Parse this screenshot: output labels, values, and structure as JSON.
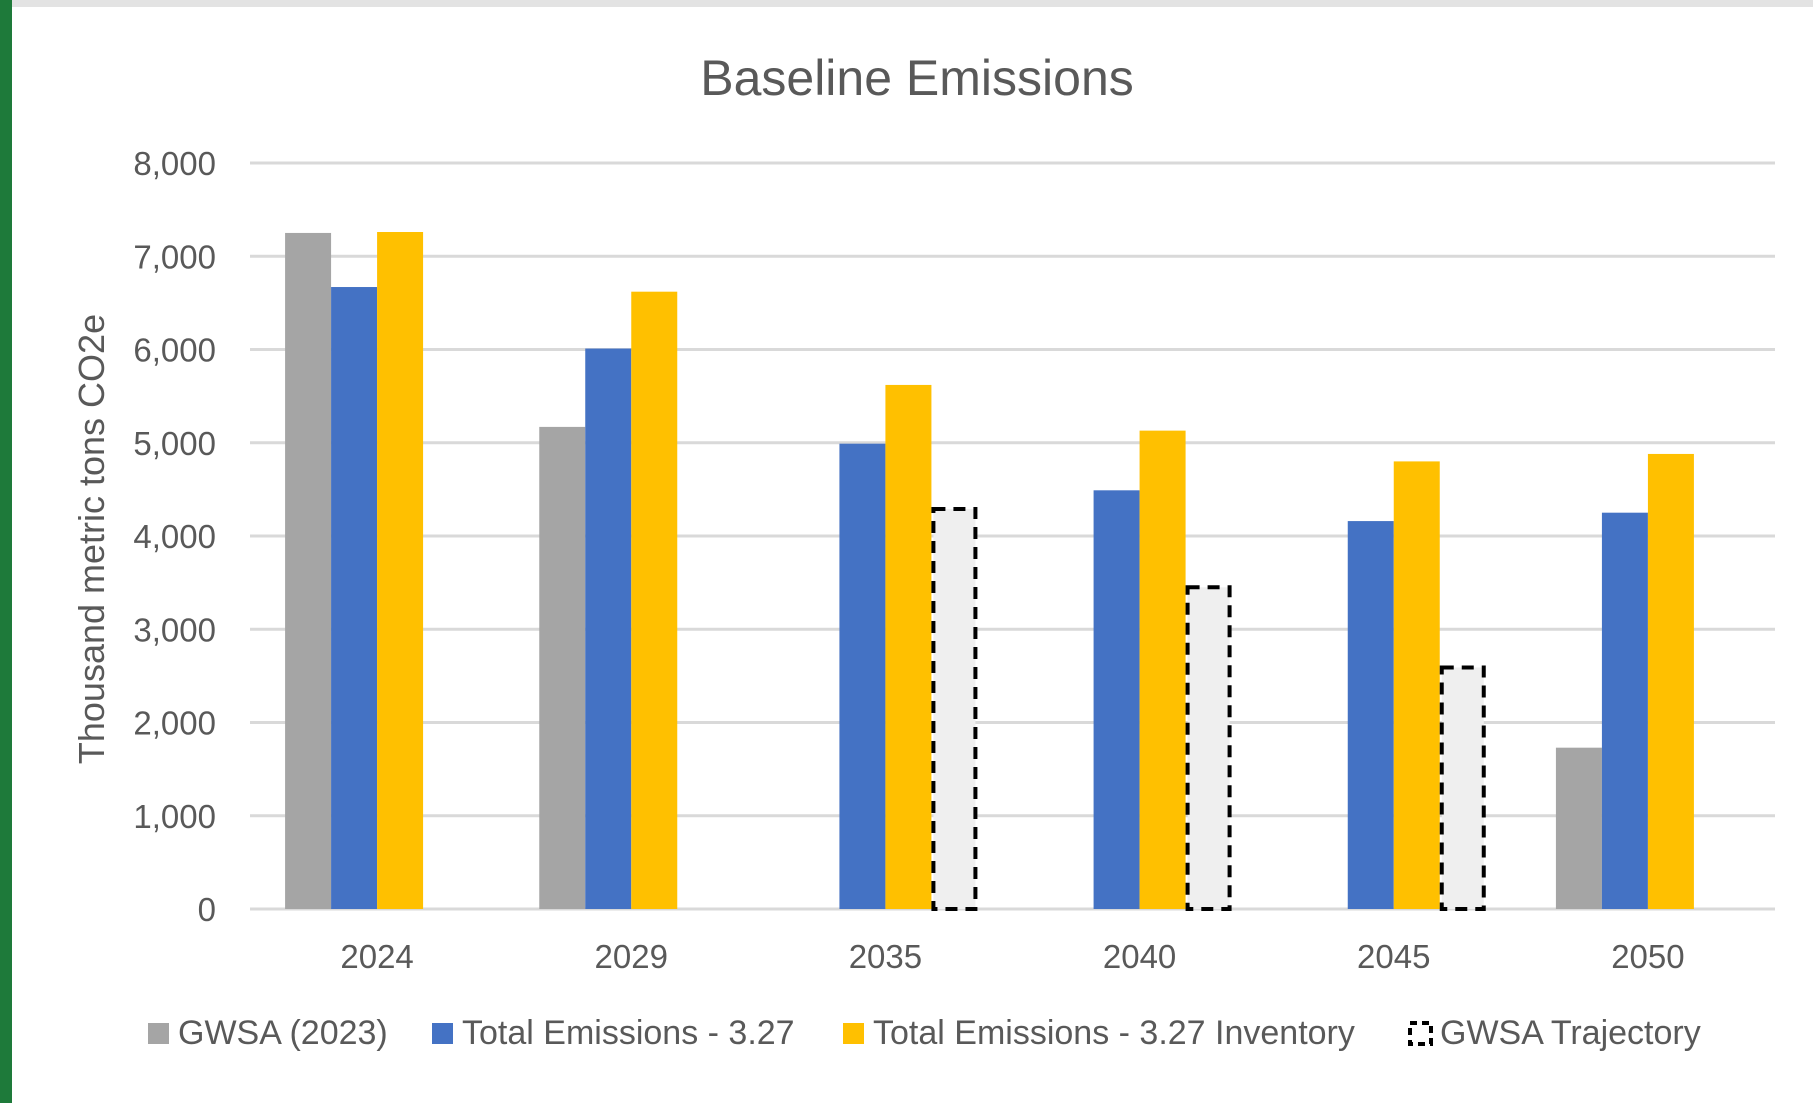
{
  "chart_data": {
    "type": "bar",
    "title": "Baseline Emissions",
    "xlabel": "",
    "ylabel": "Thousand metric tons CO2e",
    "ylim": [
      0,
      8000
    ],
    "yticks": [
      0,
      1000,
      2000,
      3000,
      4000,
      5000,
      6000,
      7000,
      8000
    ],
    "ytick_labels": [
      "0",
      "1,000",
      "2,000",
      "3,000",
      "4,000",
      "5,000",
      "6,000",
      "7,000",
      "8,000"
    ],
    "grid": true,
    "legend_position": "bottom",
    "categories": [
      "2024",
      "2029",
      "2035",
      "2040",
      "2045",
      "2050"
    ],
    "series": [
      {
        "name": "GWSA (2023)",
        "color": "#a5a5a5",
        "style": "solid",
        "values": [
          7250,
          5170,
          null,
          null,
          null,
          1730
        ]
      },
      {
        "name": "Total Emissions - 3.27",
        "color": "#4472c4",
        "style": "solid",
        "values": [
          6670,
          6010,
          4990,
          4490,
          4160,
          4250
        ]
      },
      {
        "name": "Total Emissions - 3.27 Inventory",
        "color": "#ffc000",
        "style": "solid",
        "values": [
          7260,
          6620,
          5620,
          5130,
          4800,
          4880
        ]
      },
      {
        "name": "GWSA Trajectory",
        "color": "#efefef",
        "style": "dashed",
        "values": [
          null,
          null,
          4290,
          3450,
          2590,
          null
        ]
      }
    ]
  }
}
